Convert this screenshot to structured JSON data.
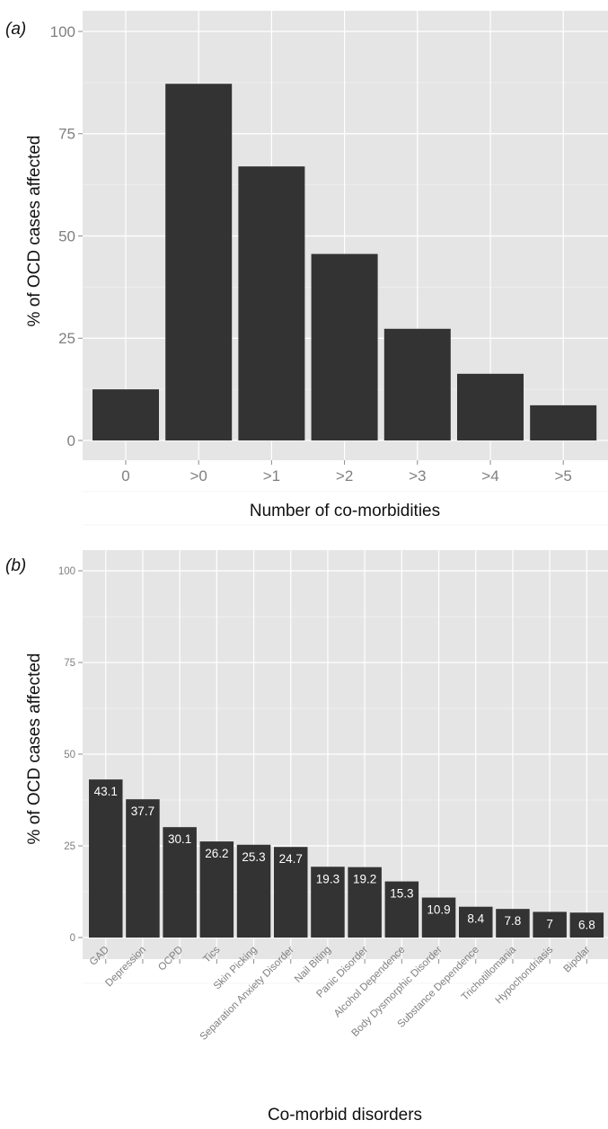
{
  "chart_data": [
    {
      "type": "bar",
      "panel_label": "(a)",
      "categories": [
        "0",
        ">0",
        ">1",
        ">2",
        ">3",
        ">4",
        ">5"
      ],
      "values": [
        12.5,
        87.2,
        67.0,
        45.6,
        27.3,
        16.3,
        8.6
      ],
      "xlabel": "Number of co-morbidities",
      "ylabel": "% of OCD cases affected",
      "ylim": [
        0,
        100
      ],
      "yticks": [
        0,
        25,
        50,
        75,
        100
      ],
      "grid": true
    },
    {
      "type": "bar",
      "panel_label": "(b)",
      "categories": [
        "GAD",
        "Depression",
        "OCPD",
        "Tics",
        "Skin Picking",
        "Separation Anxiety Disorder",
        "Nail Biting",
        "Panic Disorder",
        "Alcohol Dependence",
        "Body Dysmorphic Disorder",
        "Substance Dependence",
        "Trichotillomania",
        "Hypochondriasis",
        "Bipolar"
      ],
      "values": [
        43.1,
        37.7,
        30.1,
        26.2,
        25.3,
        24.7,
        19.3,
        19.2,
        15.3,
        10.9,
        8.4,
        7.8,
        7,
        6.8
      ],
      "data_labels": [
        "43.1",
        "37.7",
        "30.1",
        "26.2",
        "25.3",
        "24.7",
        "19.3",
        "19.2",
        "15.3",
        "10.9",
        "8.4",
        "7.8",
        "7",
        "6.8"
      ],
      "xlabel": "Co-morbid disorders",
      "ylabel": "% of OCD cases affected",
      "ylim": [
        0,
        100
      ],
      "yticks": [
        0,
        25,
        50,
        75,
        100
      ],
      "grid": true
    }
  ]
}
